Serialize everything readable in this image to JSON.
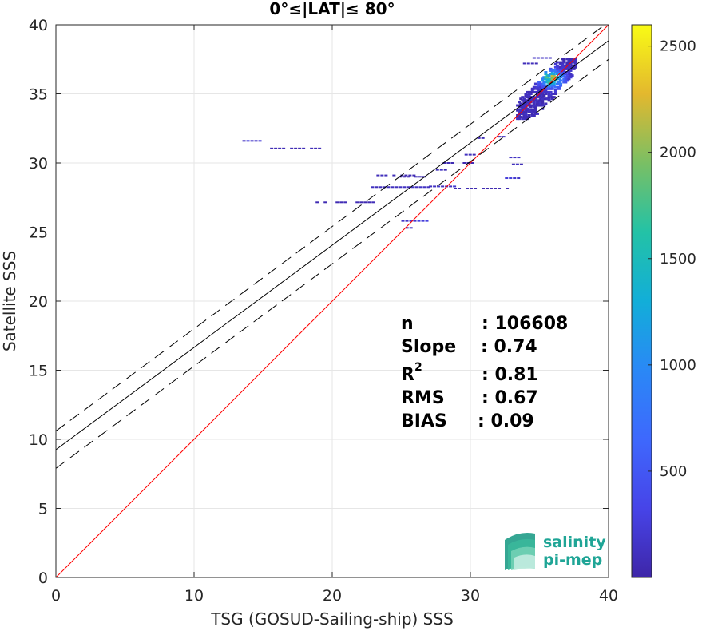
{
  "chart_data": {
    "type": "scatter",
    "title": "0°≤|LAT|≤ 80°",
    "xlabel": "TSG (GOSUD-Sailing-ship) SSS",
    "ylabel": "Satellite SSS",
    "xlim": [
      0,
      40
    ],
    "ylim": [
      0,
      40
    ],
    "xticks": [
      0,
      10,
      20,
      30,
      40
    ],
    "yticks": [
      0,
      5,
      10,
      15,
      20,
      25,
      30,
      35,
      40
    ],
    "grid": true,
    "colorbar": {
      "colormap": "parula",
      "range": [
        0,
        2600
      ],
      "ticks": [
        500,
        1000,
        1500,
        2000,
        2500
      ]
    },
    "lines": [
      {
        "name": "identity",
        "color": "#ff0000",
        "style": "solid",
        "intercept": 0,
        "slope": 1
      },
      {
        "name": "regression",
        "color": "#000000",
        "style": "solid",
        "intercept": 9.25,
        "slope": 0.74
      },
      {
        "name": "upper-bound",
        "color": "#000000",
        "style": "dashed",
        "intercept": 10.6,
        "slope": 0.74
      },
      {
        "name": "lower-bound",
        "color": "#000000",
        "style": "dashed",
        "intercept": 7.9,
        "slope": 0.74
      }
    ],
    "segments": [
      {
        "x0": 13.5,
        "x1": 14.8,
        "y": 31.6,
        "density": 200
      },
      {
        "x0": 15.5,
        "x1": 19.2,
        "y": 31.05,
        "density": 60
      },
      {
        "x0": 18.8,
        "x1": 23.0,
        "y": 27.15,
        "density": 60
      },
      {
        "x0": 22.8,
        "x1": 27.0,
        "y": 28.25,
        "density": 120
      },
      {
        "x0": 23.2,
        "x1": 26.0,
        "y": 29.1,
        "density": 80
      },
      {
        "x0": 24.5,
        "x1": 27.5,
        "y": 29.0,
        "density": 60
      },
      {
        "x0": 25.0,
        "x1": 27.0,
        "y": 25.8,
        "density": 250
      },
      {
        "x0": 25.3,
        "x1": 25.6,
        "y": 25.3,
        "density": 100
      },
      {
        "x0": 27.0,
        "x1": 29.0,
        "y": 28.3,
        "density": 150
      },
      {
        "x0": 27.5,
        "x1": 28.3,
        "y": 29.5,
        "density": 100
      },
      {
        "x0": 28.0,
        "x1": 30.5,
        "y": 30.0,
        "density": 60
      },
      {
        "x0": 28.5,
        "x1": 32.8,
        "y": 28.15,
        "density": 40
      },
      {
        "x0": 29.0,
        "x1": 30.2,
        "y": 30.6,
        "density": 80
      },
      {
        "x0": 30.5,
        "x1": 30.8,
        "y": 31.8,
        "density": 80
      },
      {
        "x0": 32.5,
        "x1": 33.5,
        "y": 28.9,
        "density": 200
      },
      {
        "x0": 32.8,
        "x1": 33.5,
        "y": 30.4,
        "density": 150
      },
      {
        "x0": 32.0,
        "x1": 32.3,
        "y": 31.9,
        "density": 80
      },
      {
        "x0": 33.0,
        "x1": 33.8,
        "y": 29.9,
        "density": 120
      },
      {
        "x0": 34.5,
        "x1": 35.8,
        "y": 37.6,
        "density": 150
      },
      {
        "x0": 33.8,
        "x1": 34.8,
        "y": 37.2,
        "density": 100
      }
    ],
    "clusters": [
      {
        "x0": 33.3,
        "x1": 37.5,
        "y0": 33.2,
        "y1": 37.6,
        "peak_x": 35.8,
        "peak_y": 36.1,
        "max": 2600
      }
    ],
    "annotation": [
      {
        "label": "n",
        "value": ": 106608"
      },
      {
        "label": "Slope",
        "value": ": 0.74"
      },
      {
        "label": "R",
        "sup": "2",
        "value": ": 0.81"
      },
      {
        "label": "RMS",
        "value": ": 0.67"
      },
      {
        "label": "BIAS",
        "value": ": 0.09"
      }
    ]
  },
  "logo": {
    "line1": "salinity",
    "line2": "pi-mep"
  }
}
